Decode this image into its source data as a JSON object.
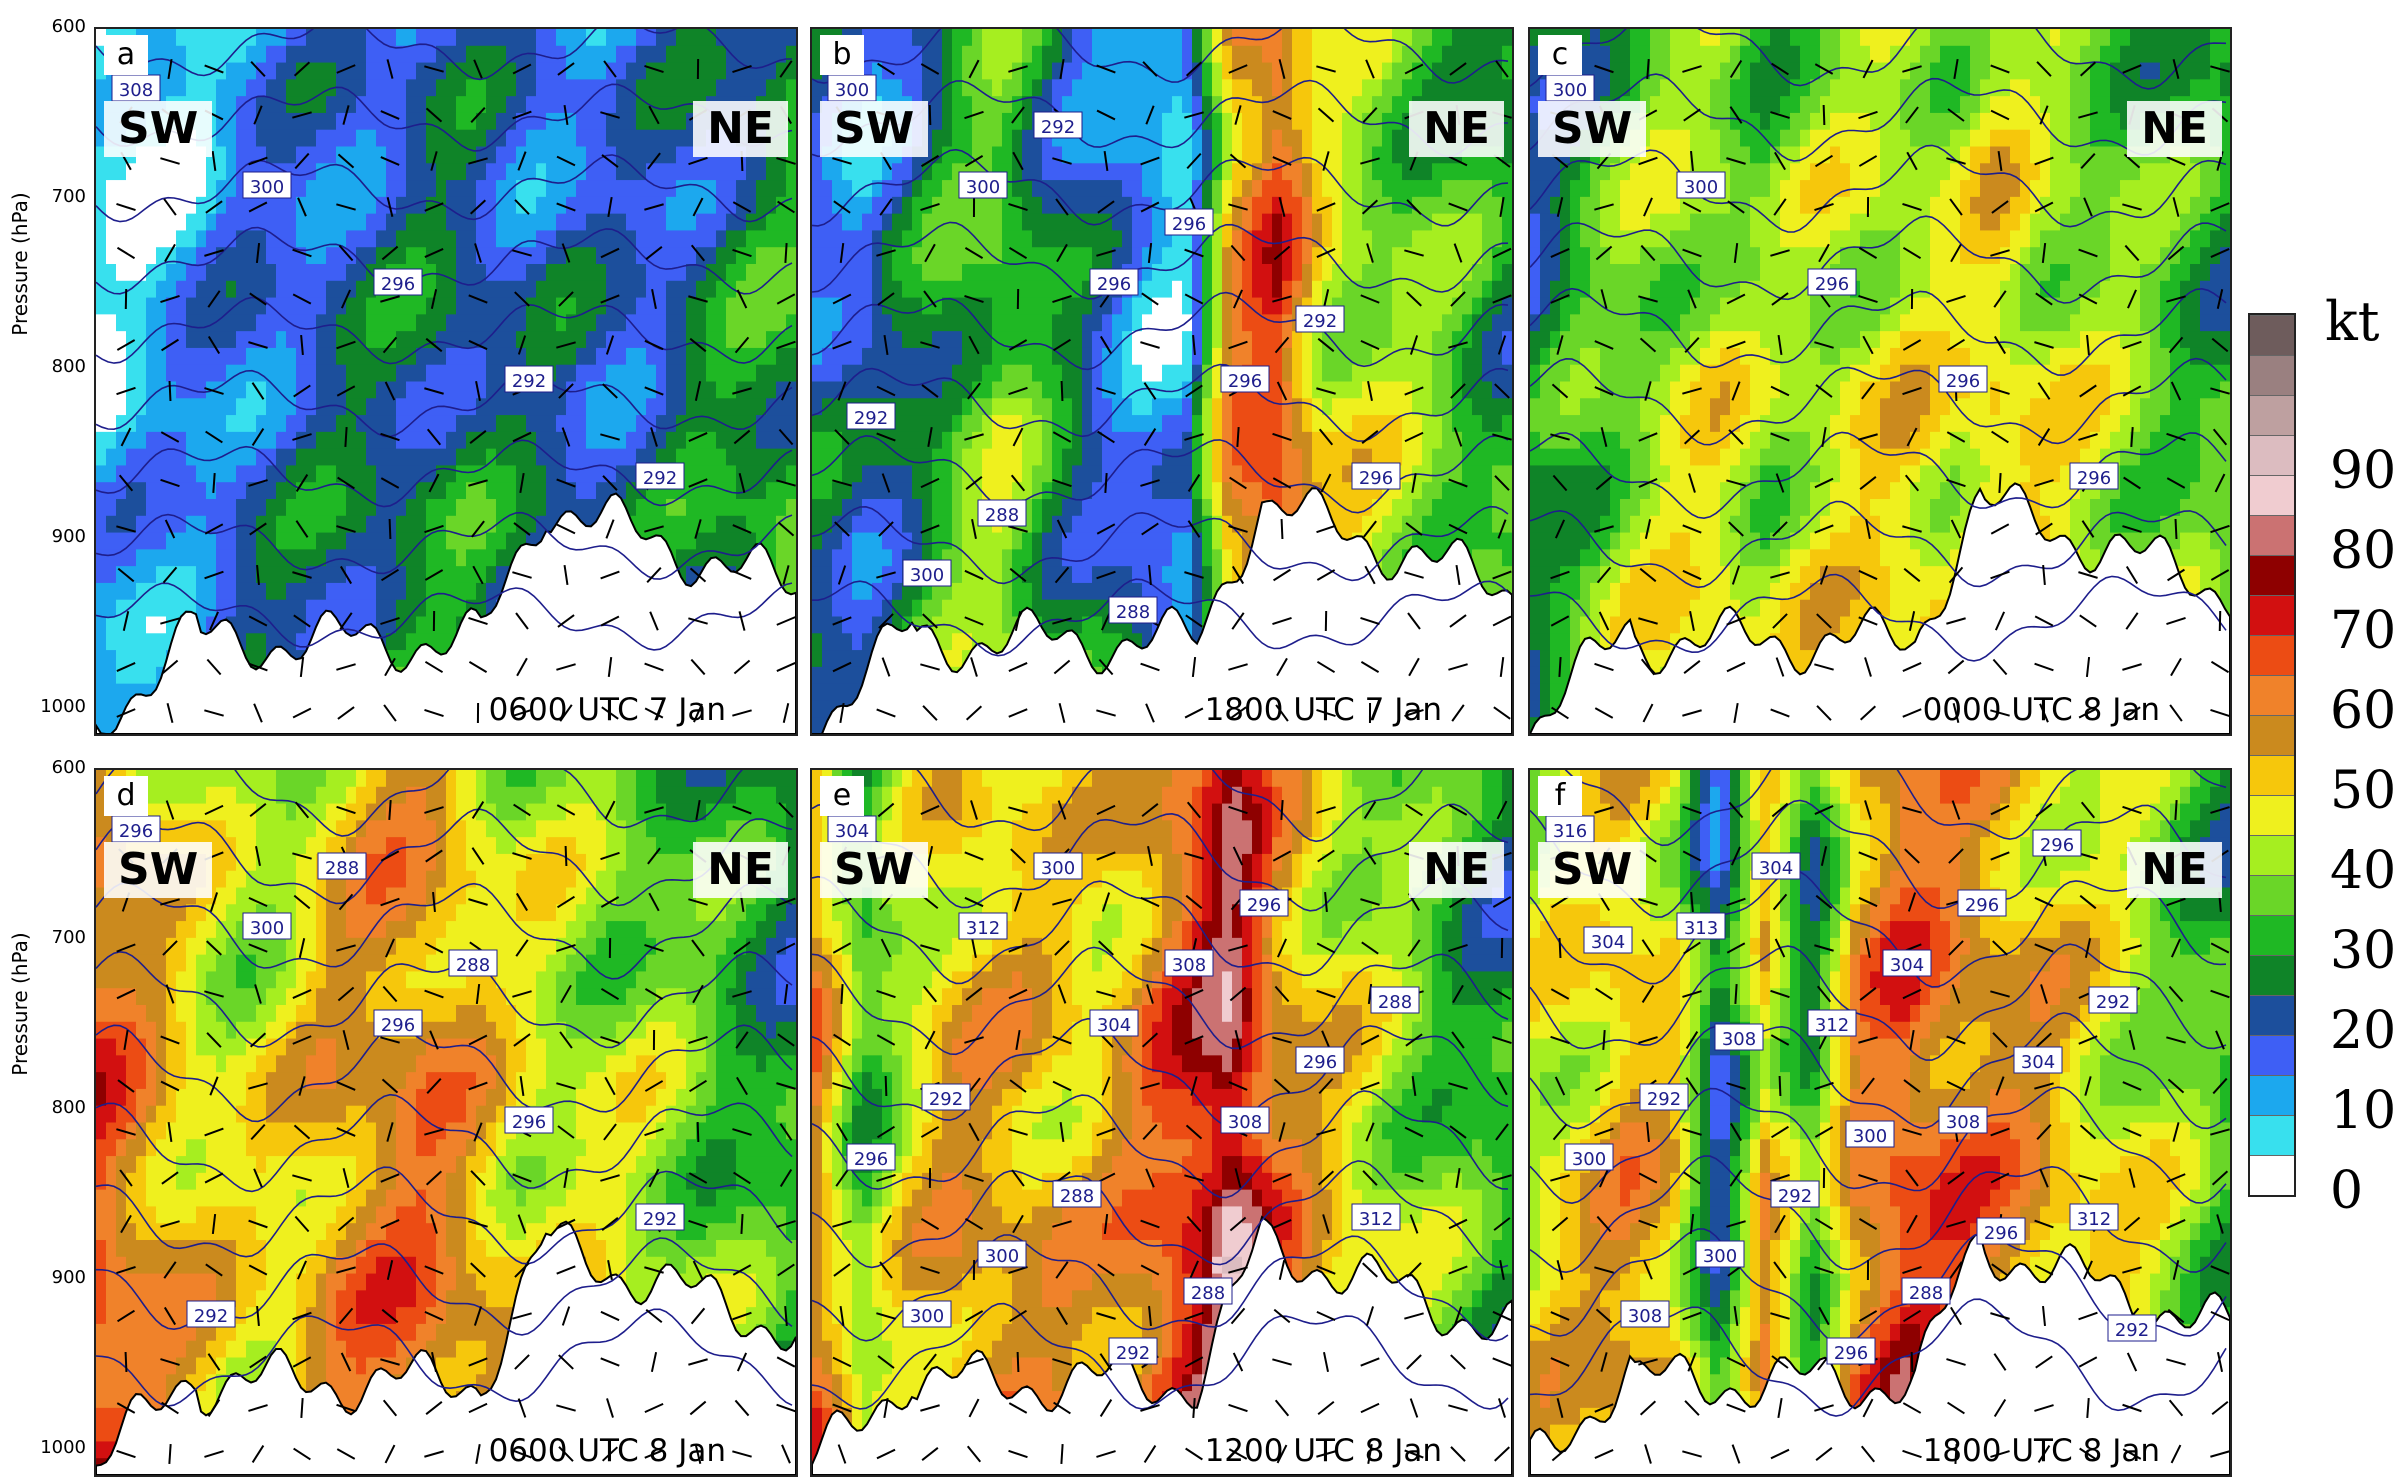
{
  "figure": {
    "ylabel": "Pressure (hPa)",
    "colorbar_unit": "kt"
  },
  "chart_data": [
    {
      "type": "heatmap",
      "panel": "a",
      "time": "0600 UTC 7 Jan",
      "left_label": "SW",
      "right_label": "NE",
      "ylabel": "Pressure (hPa)",
      "yticks": [
        "600",
        "700",
        "800",
        "900",
        "1000"
      ],
      "ylim": [
        1015,
        600
      ],
      "series": [
        {
          "name": "",
          "profile": [
            8,
            10,
            14,
            18,
            20,
            22,
            24,
            26,
            26,
            22,
            22,
            20,
            22,
            26,
            30,
            32
          ]
        }
      ],
      "isentropes": [
        "308",
        "300",
        "296",
        "292",
        "292"
      ]
    },
    {
      "type": "heatmap",
      "panel": "b",
      "time": "1800 UTC 7 Jan",
      "left_label": "SW",
      "right_label": "NE",
      "ylabel": "",
      "yticks": [],
      "ylim": [
        1015,
        600
      ],
      "series": [
        {
          "name": "",
          "profile": [
            22,
            18,
            26,
            34,
            40,
            30,
            22,
            14,
            10,
            60,
            70,
            48,
            44,
            40,
            36,
            30
          ]
        }
      ],
      "isentropes": [
        "300",
        "300",
        "296",
        "296",
        "296",
        "300",
        "292",
        "296",
        "292",
        "292",
        "288",
        "288"
      ]
    },
    {
      "type": "heatmap",
      "panel": "c",
      "time": "0000 UTC 8 Jan",
      "left_label": "SW",
      "right_label": "NE",
      "ylabel": "",
      "yticks": [],
      "ylim": [
        1015,
        600
      ],
      "series": [
        {
          "name": "",
          "profile": [
            26,
            34,
            40,
            44,
            46,
            40,
            44,
            46,
            48,
            46,
            52,
            46,
            44,
            40,
            36,
            32
          ]
        }
      ],
      "isentropes": [
        "300",
        "300",
        "296",
        "296",
        "296"
      ]
    },
    {
      "type": "heatmap",
      "panel": "d",
      "time": "0600 UTC 8 Jan",
      "left_label": "SW",
      "right_label": "NE",
      "ylabel": "Pressure (hPa)",
      "yticks": [
        "600",
        "700",
        "800",
        "900",
        "1000"
      ],
      "ylim": [
        1015,
        600
      ],
      "series": [
        {
          "name": "",
          "profile": [
            66,
            58,
            50,
            46,
            48,
            56,
            60,
            62,
            56,
            48,
            46,
            44,
            42,
            38,
            34,
            30
          ]
        }
      ],
      "isentropes": [
        "296",
        "300",
        "296",
        "296",
        "292",
        "292",
        "288",
        "288"
      ]
    },
    {
      "type": "heatmap",
      "panel": "e",
      "time": "1200 UTC 8 Jan",
      "left_label": "SW",
      "right_label": "NE",
      "ylabel": "",
      "yticks": [],
      "ylim": [
        1015,
        600
      ],
      "series": [
        {
          "name": "",
          "profile": [
            60,
            34,
            48,
            56,
            56,
            54,
            52,
            60,
            70,
            84,
            62,
            52,
            46,
            40,
            34,
            30
          ]
        }
      ],
      "isentropes": [
        "304",
        "312",
        "304",
        "308",
        "312",
        "300",
        "300",
        "308",
        "296",
        "296",
        "300",
        "292",
        "296",
        "288",
        "292",
        "288",
        "288"
      ]
    },
    {
      "type": "heatmap",
      "panel": "f",
      "time": "1800 UTC 8 Jan",
      "left_label": "SW",
      "right_label": "NE",
      "ylabel": "",
      "yticks": [],
      "ylim": [
        1015,
        600
      ],
      "series": [
        {
          "name": "",
          "profile": [
            46,
            50,
            56,
            52,
            20,
            54,
            30,
            60,
            68,
            64,
            60,
            56,
            50,
            46,
            40,
            34
          ]
        }
      ],
      "isentropes": [
        "316",
        "313",
        "312",
        "308",
        "312",
        "308",
        "304",
        "304",
        "304",
        "300",
        "300",
        "296",
        "296",
        "292",
        "292",
        "292",
        "288",
        "296",
        "304",
        "308",
        "300",
        "296",
        "292"
      ]
    }
  ],
  "colorbar": {
    "labels": [
      "90",
      "80",
      "70",
      "60",
      "50",
      "40",
      "30",
      "20",
      "10",
      "0"
    ],
    "colors": [
      "#ffffff",
      "#38e0ee",
      "#1ca8ee",
      "#3e5ff5",
      "#1c4f9c",
      "#0f8428",
      "#1fb824",
      "#6ad628",
      "#a6ee20",
      "#eff01e",
      "#f6c70c",
      "#cb8a1e",
      "#f0822a",
      "#ec4c14",
      "#d21010",
      "#8e0000",
      "#cb7272",
      "#f0ccd0",
      "#dcbcc0",
      "#bea0a0",
      "#9a8080",
      "#6e5c5c"
    ]
  }
}
